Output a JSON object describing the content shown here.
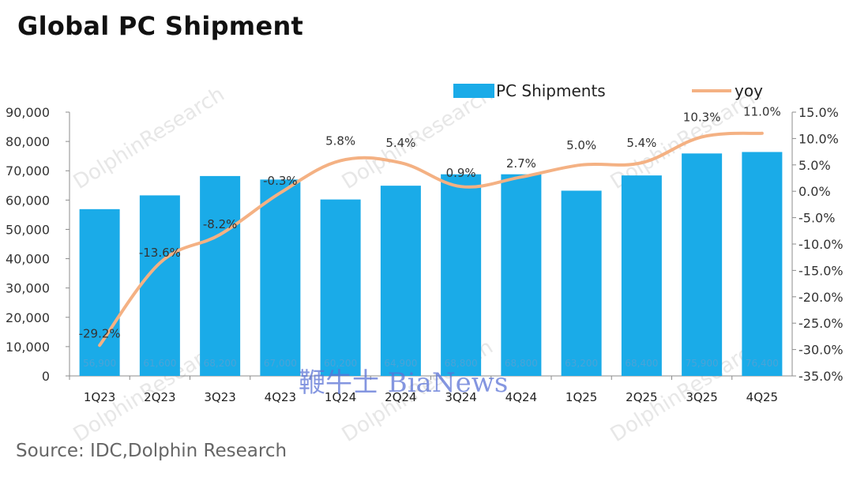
{
  "title": "Global PC Shipment",
  "source": "Source: IDC,Dolphin Research",
  "watermark_repeat": "DolphinResearch",
  "watermark_center": "鞭牛士 BiaNews",
  "colors": {
    "bar": "#1aabe8",
    "line": "#f4b183",
    "bar_label": "#4aa3d8"
  },
  "chart_data": {
    "type": "bar",
    "categories": [
      "1Q23",
      "2Q23",
      "3Q23",
      "4Q23",
      "1Q24",
      "2Q24",
      "3Q24",
      "4Q24",
      "1Q25",
      "2Q25",
      "3Q25",
      "4Q25"
    ],
    "series": [
      {
        "name": "PC Shipments",
        "type": "bar",
        "axis": "left",
        "values": [
          56900,
          61600,
          68200,
          67000,
          60200,
          64900,
          68800,
          68800,
          63200,
          68400,
          75900,
          76400
        ],
        "labels": [
          "56,900",
          "61,600",
          "68,200",
          "67,000",
          "60,200",
          "64,900",
          "68,800",
          "68,800",
          "63,200",
          "68,400",
          "75,900",
          "76,400"
        ]
      },
      {
        "name": "yoy",
        "type": "line",
        "axis": "right",
        "values": [
          -29.2,
          -13.6,
          -8.2,
          -0.3,
          5.8,
          5.4,
          0.9,
          2.7,
          5.0,
          5.4,
          10.3,
          11.0
        ],
        "labels": [
          "-29.2%",
          "-13.6%",
          "-8.2%",
          "-0.3%",
          "5.8%",
          "5.4%",
          "0.9%",
          "2.7%",
          "5.0%",
          "5.4%",
          "10.3%",
          "11.0%"
        ]
      }
    ],
    "ylim_left": [
      0,
      90000
    ],
    "yticks_left": [
      "0",
      "10,000",
      "20,000",
      "30,000",
      "40,000",
      "50,000",
      "60,000",
      "70,000",
      "80,000",
      "90,000"
    ],
    "ylim_right": [
      -35,
      15
    ],
    "yticks_right": [
      "-35.0%",
      "-30.0%",
      "-25.0%",
      "-20.0%",
      "-15.0%",
      "-10.0%",
      "-5.0%",
      "0.0%",
      "5.0%",
      "10.0%",
      "15.0%"
    ],
    "legend_position": "top",
    "grid": false
  }
}
